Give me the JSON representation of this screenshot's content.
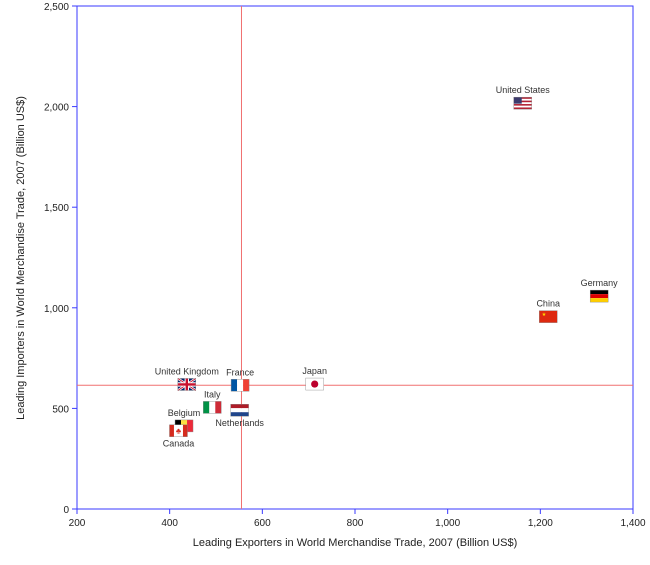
{
  "chart_data": {
    "type": "scatter",
    "title": "",
    "xlabel": "Leading Exporters in World Merchandise Trade, 2007 (Billion US$)",
    "ylabel": "Leading Importers in World Merchandise Trade, 2007 (Billion US$)",
    "xlim": [
      200,
      1400
    ],
    "ylim": [
      0,
      2500
    ],
    "x_ticks": [
      200,
      400,
      600,
      800,
      1000,
      1200,
      1400
    ],
    "x_tick_labels": [
      "200",
      "400",
      "600",
      "800",
      "1,000",
      "1,200",
      "1,400"
    ],
    "y_ticks": [
      0,
      500,
      1000,
      1500,
      2000,
      2500
    ],
    "y_tick_labels": [
      "0",
      "500",
      "1,000",
      "1,500",
      "2,000",
      "2,500"
    ],
    "reference_lines": {
      "x": 555,
      "y": 615
    },
    "points": [
      {
        "country": "United States",
        "x": 1162,
        "y": 2017,
        "flag": "us-flag",
        "label_pos": "above"
      },
      {
        "country": "Germany",
        "x": 1327,
        "y": 1058,
        "flag": "germany-flag",
        "label_pos": "above"
      },
      {
        "country": "China",
        "x": 1217,
        "y": 956,
        "flag": "china-flag",
        "label_pos": "above"
      },
      {
        "country": "Japan",
        "x": 713,
        "y": 621,
        "flag": "japan-flag",
        "label_pos": "above"
      },
      {
        "country": "France",
        "x": 552,
        "y": 615,
        "flag": "france-flag",
        "label_pos": "above"
      },
      {
        "country": "United Kingdom",
        "x": 437,
        "y": 619,
        "flag": "uk-flag",
        "label_pos": "above"
      },
      {
        "country": "Italy",
        "x": 492,
        "y": 505,
        "flag": "italy-flag",
        "label_pos": "above"
      },
      {
        "country": "Netherlands",
        "x": 551,
        "y": 491,
        "flag": "netherlands-flag",
        "label_pos": "below"
      },
      {
        "country": "Belgium",
        "x": 431,
        "y": 413,
        "flag": "belgium-flag",
        "label_pos": "above"
      },
      {
        "country": "Canada",
        "x": 419,
        "y": 389,
        "flag": "canada-flag",
        "label_pos": "below"
      }
    ]
  }
}
